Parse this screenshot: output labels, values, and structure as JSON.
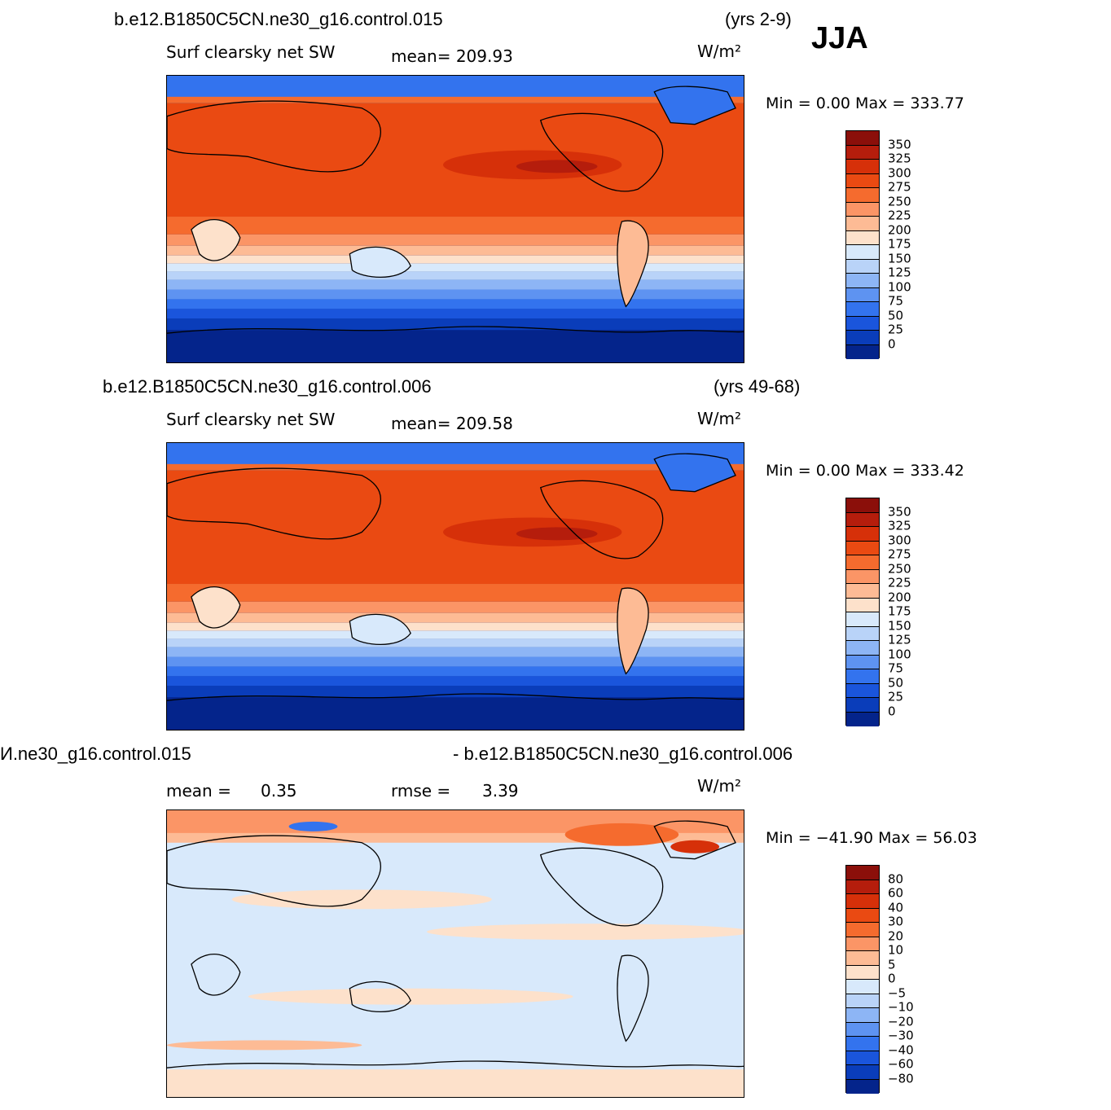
{
  "season": "JJA",
  "panels": [
    {
      "case_title": "b.e12.B1850C5CN.ne30_g16.control.015",
      "years": "(yrs 2-9)",
      "var_label": "Surf clearsky net SW",
      "stat_text": "mean=  209.93",
      "units": "W/m²",
      "minmax": "Min =    0.00  Max  =  333.77",
      "levels": [
        "350",
        "325",
        "300",
        "275",
        "250",
        "225",
        "200",
        "175",
        "150",
        "125",
        "100",
        "75",
        "50",
        "25",
        "0"
      ],
      "colors": [
        "#8b0f0a",
        "#b51d0c",
        "#d63009",
        "#ea4a12",
        "#f56b2e",
        "#fb9566",
        "#fdbb95",
        "#fde1cb",
        "#d8e9fb",
        "#b9d3f8",
        "#8db5f5",
        "#5e93f1",
        "#3373ee",
        "#1a55dc",
        "#0a3dba",
        "#04248b"
      ]
    },
    {
      "case_title": "b.e12.B1850C5CN.ne30_g16.control.006",
      "years": "(yrs 49-68)",
      "var_label": "Surf clearsky net SW",
      "stat_text": "mean=  209.58",
      "units": "W/m²",
      "minmax": "Min =    0.00  Max  =  333.42",
      "levels": [
        "350",
        "325",
        "300",
        "275",
        "250",
        "225",
        "200",
        "175",
        "150",
        "125",
        "100",
        "75",
        "50",
        "25",
        "0"
      ],
      "colors": [
        "#8b0f0a",
        "#b51d0c",
        "#d63009",
        "#ea4a12",
        "#f56b2e",
        "#fb9566",
        "#fdbb95",
        "#fde1cb",
        "#d8e9fb",
        "#b9d3f8",
        "#8db5f5",
        "#5e93f1",
        "#3373ee",
        "#1a55dc",
        "#0a3dba",
        "#04248b"
      ]
    },
    {
      "case_title_left": "И.ne30_g16.control.015",
      "case_title_right": "- b.e12.B1850C5CN.ne30_g16.control.006",
      "mean_label": "mean =",
      "mean_value": "0.35",
      "rmse_label": "rmse =",
      "rmse_value": "3.39",
      "units": "W/m²",
      "minmax": "Min = −41.90  Max  =   56.03",
      "levels": [
        "80",
        "60",
        "40",
        "30",
        "20",
        "10",
        "5",
        "0",
        "−5",
        "−10",
        "−20",
        "−30",
        "−40",
        "−60",
        "−80"
      ],
      "colors": [
        "#8b0f0a",
        "#b51d0c",
        "#d63009",
        "#ea4a12",
        "#f56b2e",
        "#fb9566",
        "#fdbb95",
        "#fde1cb",
        "#d8e9fb",
        "#b9d3f8",
        "#8db5f5",
        "#5e93f1",
        "#3373ee",
        "#1a55dc",
        "#0a3dba",
        "#04248b"
      ]
    }
  ]
}
